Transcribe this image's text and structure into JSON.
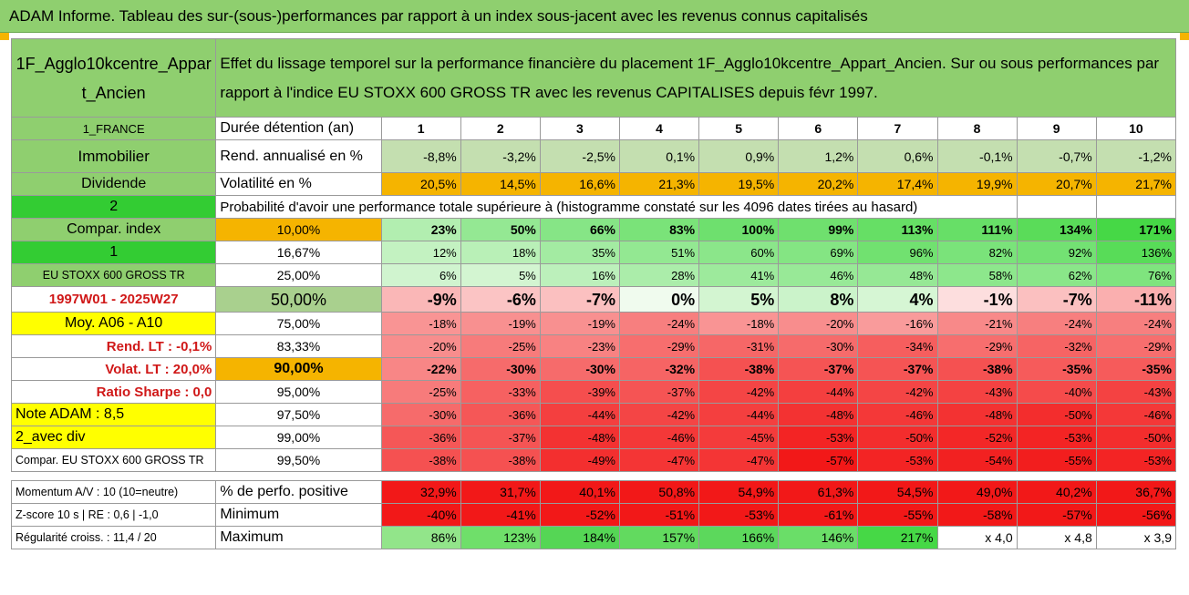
{
  "title": "ADAM Informe. Tableau des sur-(sous-)performances par rapport à un index sous-jacent avec les revenus connus capitalisés",
  "colors": {
    "header_green": "#8fcf6f",
    "light_green": "#c4dfb0",
    "bright_green": "#33cc33",
    "orange": "#f5b400",
    "yellow": "#ffff00",
    "red_strong": "#f21818",
    "red_light": "#f6c4c4",
    "green_strong": "#46d846"
  },
  "header": {
    "asset_name": "1F_Agglo10kcentre_Appart_Ancien",
    "description": "Effet du lissage temporel sur la performance financière du placement 1F_Agglo10kcentre_Appart_Ancien. Sur ou sous performances par rapport à l'indice EU STOXX 600 GROSS TR avec les revenus CAPITALISES depuis févr 1997."
  },
  "side": {
    "country": "1_FRANCE",
    "category": "Immobilier",
    "mode": "Dividende",
    "two": "2",
    "compar_index": "Compar. index",
    "one": "1",
    "index_name": "EU STOXX 600 GROSS TR",
    "period": "1997W01 - 2025W27",
    "moy": "Moy. A06 - A10",
    "rend_lt": "Rend. LT :   -0,1%",
    "volat_lt": "Volat. LT :   20,0%",
    "sharpe": "Ratio Sharpe :    0,0",
    "note": "Note ADAM : 8,5",
    "avec_div": "2_avec div",
    "compar_full": "Compar. EU STOXX 600 GROSS TR"
  },
  "labels": {
    "duree": "Durée détention (an)",
    "rend": "Rend. annualisé en %",
    "volat": "Volatilité en %",
    "proba": "Probabilité d'avoir une performance totale supérieure à (histogramme constaté sur les 4096 dates tirées au hasard)",
    "perfo_pos": "% de perfo. positive",
    "minimum": "Minimum",
    "maximum": "Maximum",
    "momentum": "Momentum A/V : 10 (10=neutre)",
    "zscore": "Z-score 10 s | RE : 0,6 | -1,0",
    "regularite": "Régularité croiss. : 11,4 / 20"
  },
  "years": [
    "1",
    "2",
    "3",
    "4",
    "5",
    "6",
    "7",
    "8",
    "9",
    "10"
  ],
  "rend": [
    "-8,8%",
    "-3,2%",
    "-2,5%",
    "0,1%",
    "0,9%",
    "1,2%",
    "0,6%",
    "-0,1%",
    "-0,7%",
    "-1,2%"
  ],
  "volat": [
    "20,5%",
    "14,5%",
    "16,6%",
    "21,3%",
    "19,5%",
    "20,2%",
    "17,4%",
    "19,9%",
    "20,7%",
    "21,7%"
  ],
  "quantile_rows": [
    {
      "pct": "10,00%",
      "values": [
        "23%",
        "50%",
        "66%",
        "83%",
        "100%",
        "99%",
        "113%",
        "111%",
        "134%",
        "171%"
      ]
    },
    {
      "pct": "16,67%",
      "values": [
        "12%",
        "18%",
        "35%",
        "51%",
        "60%",
        "69%",
        "96%",
        "82%",
        "92%",
        "136%"
      ]
    },
    {
      "pct": "25,00%",
      "values": [
        "6%",
        "5%",
        "16%",
        "28%",
        "41%",
        "46%",
        "48%",
        "58%",
        "62%",
        "76%"
      ]
    },
    {
      "pct": "50,00%",
      "values": [
        "-9%",
        "-6%",
        "-7%",
        "0%",
        "5%",
        "8%",
        "4%",
        "-1%",
        "-7%",
        "-11%"
      ]
    },
    {
      "pct": "75,00%",
      "values": [
        "-18%",
        "-19%",
        "-19%",
        "-24%",
        "-18%",
        "-20%",
        "-16%",
        "-21%",
        "-24%",
        "-24%"
      ]
    },
    {
      "pct": "83,33%",
      "values": [
        "-20%",
        "-25%",
        "-23%",
        "-29%",
        "-31%",
        "-30%",
        "-34%",
        "-29%",
        "-32%",
        "-29%"
      ]
    },
    {
      "pct": "90,00%",
      "values": [
        "-22%",
        "-30%",
        "-30%",
        "-32%",
        "-38%",
        "-37%",
        "-37%",
        "-38%",
        "-35%",
        "-35%"
      ]
    },
    {
      "pct": "95,00%",
      "values": [
        "-25%",
        "-33%",
        "-39%",
        "-37%",
        "-42%",
        "-44%",
        "-42%",
        "-43%",
        "-40%",
        "-43%"
      ]
    },
    {
      "pct": "97,50%",
      "values": [
        "-30%",
        "-36%",
        "-44%",
        "-42%",
        "-44%",
        "-48%",
        "-46%",
        "-48%",
        "-50%",
        "-46%"
      ]
    },
    {
      "pct": "99,00%",
      "values": [
        "-36%",
        "-37%",
        "-48%",
        "-46%",
        "-45%",
        "-53%",
        "-50%",
        "-52%",
        "-53%",
        "-50%"
      ]
    },
    {
      "pct": "99,50%",
      "values": [
        "-38%",
        "-38%",
        "-49%",
        "-47%",
        "-47%",
        "-57%",
        "-53%",
        "-54%",
        "-55%",
        "-53%"
      ]
    }
  ],
  "perfo_pos": [
    "32,9%",
    "31,7%",
    "40,1%",
    "50,8%",
    "54,9%",
    "61,3%",
    "54,5%",
    "49,0%",
    "40,2%",
    "36,7%"
  ],
  "minimum": [
    "-40%",
    "-41%",
    "-52%",
    "-51%",
    "-53%",
    "-61%",
    "-55%",
    "-58%",
    "-57%",
    "-56%"
  ],
  "maximum": [
    "86%",
    "123%",
    "184%",
    "157%",
    "166%",
    "146%",
    "217%",
    "x 4,0",
    "x 4,8",
    "x 3,9"
  ]
}
